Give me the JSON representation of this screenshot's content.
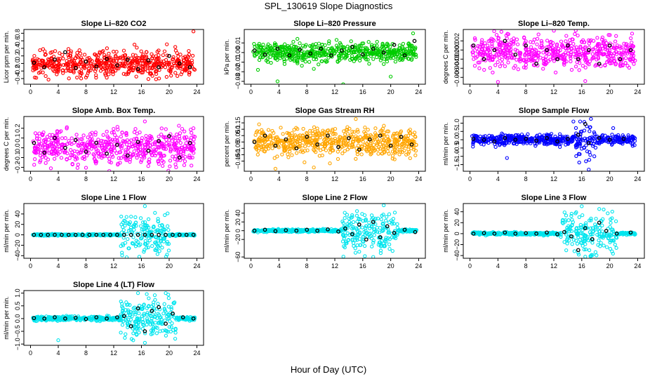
{
  "title": "SPL_130619  Slope Diagnostics",
  "xlabel": "Hour of Day (UTC)",
  "colors": {
    "red": "#ff0000",
    "green": "#00cc00",
    "magenta": "#ff00ff",
    "orange": "#ffa500",
    "blue": "#0000ff",
    "cyan": "#00e5ee",
    "black": "#000000"
  },
  "chart_data": [
    {
      "type": "scatter",
      "title": "Slope Li-820 CO2",
      "ylabel": "Licor ppm per min.",
      "xlim": [
        0,
        24
      ],
      "xticks": [
        0,
        4,
        8,
        12,
        16,
        20,
        24
      ],
      "ylim": [
        -0.55,
        0.9
      ],
      "yticks": [
        -0.4,
        -0.2,
        0.0,
        0.2,
        0.4,
        0.6,
        0.8
      ],
      "ytick_labels": [
        "-0.4",
        "-0.2",
        "0.0",
        "0.2",
        "0.4",
        "0.6",
        "0.8"
      ],
      "color": "red",
      "center": 0.0,
      "noise": 0.17,
      "wide": [],
      "outliers": [
        [
          23.5,
          0.85
        ],
        [
          15,
          0.5
        ],
        [
          3.1,
          0.3
        ]
      ],
      "black": [
        [
          0.5,
          0.02
        ],
        [
          2,
          -0.1
        ],
        [
          3.5,
          0.1
        ],
        [
          5,
          0.3
        ],
        [
          6.5,
          -0.12
        ],
        [
          8,
          0.05
        ],
        [
          9.5,
          -0.08
        ],
        [
          11,
          0.12
        ],
        [
          12.5,
          -0.05
        ],
        [
          14,
          0.1
        ],
        [
          15.5,
          -0.15
        ],
        [
          17,
          0.08
        ],
        [
          18.5,
          -0.1
        ],
        [
          20,
          0.2
        ],
        [
          21.5,
          0.0
        ],
        [
          23,
          -0.1
        ]
      ]
    },
    {
      "type": "scatter",
      "title": "Slope Li-820 Pressure",
      "ylabel": "kPa per min.",
      "xlim": [
        0,
        24
      ],
      "xticks": [
        0,
        4,
        8,
        12,
        16,
        20,
        24
      ],
      "ylim": [
        -0.033,
        0.024
      ],
      "yticks": [
        -0.03,
        -0.02,
        -0.01,
        0.0,
        0.01
      ],
      "ytick_labels": [
        "-0.03",
        "-0.02",
        "-0.01",
        "0.00",
        "0.01"
      ],
      "color": "green",
      "center": 0.0,
      "noise": 0.005,
      "wide": [],
      "outliers": [
        [
          3.8,
          -0.03
        ],
        [
          13.2,
          -0.033
        ],
        [
          20,
          -0.025
        ],
        [
          1,
          -0.018
        ],
        [
          9,
          -0.017
        ],
        [
          23.2,
          0.02
        ],
        [
          19,
          -0.012
        ]
      ],
      "black": [
        [
          0.5,
          0.002
        ],
        [
          2,
          -0.002
        ],
        [
          3.8,
          0.004
        ],
        [
          5.5,
          -0.003
        ],
        [
          7,
          0.003
        ],
        [
          8.5,
          -0.001
        ],
        [
          10,
          0.004
        ],
        [
          11.5,
          -0.003
        ],
        [
          13,
          0.002
        ],
        [
          14.5,
          0.006
        ],
        [
          16,
          -0.002
        ],
        [
          17.5,
          0.004
        ],
        [
          19,
          0.0
        ],
        [
          20.5,
          0.008
        ],
        [
          22,
          -0.003
        ],
        [
          23.4,
          0.012
        ]
      ]
    },
    {
      "type": "scatter",
      "title": "Slope Li-820 Temp.",
      "ylabel": "degrees C per min.",
      "xlim": [
        0,
        24
      ],
      "xticks": [
        0,
        4,
        8,
        12,
        16,
        20,
        24
      ],
      "ylim": [
        -0.0075,
        0.0045
      ],
      "yticks": [
        -0.006,
        -0.004,
        -0.002,
        0.0,
        0.002
      ],
      "ytick_labels": [
        "-0.006",
        "-0.004",
        "-0.002",
        "0.000",
        "0.002"
      ],
      "color": "magenta",
      "center": -0.0005,
      "noise": 0.0017,
      "wide": [],
      "outliers": [
        [
          4,
          -0.007
        ],
        [
          4.5,
          0.004
        ],
        [
          15,
          0.0035
        ],
        [
          23.2,
          0.0036
        ],
        [
          16.5,
          -0.0068
        ]
      ],
      "black": [
        [
          0.5,
          0.001
        ],
        [
          2,
          -0.002
        ],
        [
          3.5,
          0.0
        ],
        [
          5,
          0.002
        ],
        [
          6.5,
          -0.001
        ],
        [
          8,
          0.001
        ],
        [
          9.5,
          -0.003
        ],
        [
          11,
          0.0
        ],
        [
          12.5,
          -0.002
        ],
        [
          14,
          0.001
        ],
        [
          15.5,
          -0.002
        ],
        [
          17,
          0.0
        ],
        [
          18.5,
          -0.003
        ],
        [
          20,
          0.001
        ],
        [
          21.5,
          -0.002
        ],
        [
          23,
          0.0
        ]
      ]
    },
    {
      "type": "scatter",
      "title": "Slope Amb. Box Temp.",
      "ylabel": "degrees C per min.",
      "xlim": [
        0,
        24
      ],
      "xticks": [
        0,
        4,
        8,
        12,
        16,
        20,
        24
      ],
      "ylim": [
        -0.24,
        0.32
      ],
      "yticks": [
        -0.2,
        -0.1,
        0.0,
        0.1,
        0.2
      ],
      "ytick_labels": [
        "-0.2",
        "-0.1",
        "0.0",
        "0.1",
        "0.2"
      ],
      "color": "magenta",
      "center": 0.0,
      "noise": 0.085,
      "wide": [],
      "outliers": [
        [
          16.5,
          0.27
        ],
        [
          23.5,
          0.2
        ],
        [
          21,
          -0.2
        ]
      ],
      "black": [
        [
          0.5,
          0.05
        ],
        [
          2,
          -0.05
        ],
        [
          3.5,
          0.1
        ],
        [
          5,
          0.0
        ],
        [
          6.5,
          0.08
        ],
        [
          8,
          -0.04
        ],
        [
          9.5,
          0.05
        ],
        [
          11,
          -0.06
        ],
        [
          12.5,
          0.03
        ],
        [
          14,
          -0.08
        ],
        [
          15.5,
          0.06
        ],
        [
          17,
          -0.03
        ],
        [
          18.5,
          0.07
        ],
        [
          20,
          0.12
        ],
        [
          21.5,
          -0.1
        ],
        [
          23,
          0.05
        ]
      ]
    },
    {
      "type": "scatter",
      "title": "Slope Gas Stream RH",
      "ylabel": "percent per min.",
      "xlim": [
        0,
        24
      ],
      "xticks": [
        0,
        4,
        8,
        12,
        16,
        20,
        24
      ],
      "ylim": [
        -0.23,
        0.2
      ],
      "yticks": [
        -0.15,
        -0.1,
        -0.05,
        0.0,
        0.05,
        0.1,
        0.15
      ],
      "ytick_labels": [
        "-0.15",
        "-0.1",
        "-0.05",
        "0",
        "0.05",
        "0.1",
        "0.15"
      ],
      "color": "orange",
      "center": 0.0,
      "noise": 0.055,
      "wide": [],
      "outliers": [
        [
          3.5,
          -0.21
        ],
        [
          15,
          0.18
        ],
        [
          9,
          -0.2
        ]
      ],
      "black": [
        [
          0.5,
          0.0
        ],
        [
          2,
          0.05
        ],
        [
          3.5,
          -0.03
        ],
        [
          5,
          0.02
        ],
        [
          6.5,
          -0.05
        ],
        [
          8,
          0.04
        ],
        [
          9.5,
          -0.02
        ],
        [
          11,
          0.05
        ],
        [
          12.5,
          -0.04
        ],
        [
          14,
          0.03
        ],
        [
          15.5,
          -0.06
        ],
        [
          17,
          0.02
        ],
        [
          18.5,
          0.05
        ],
        [
          20,
          -0.03
        ],
        [
          21.5,
          0.04
        ],
        [
          23,
          -0.02
        ]
      ]
    },
    {
      "type": "scatter",
      "title": "Slope Sample Flow",
      "ylabel": "ml/min per min.",
      "xlim": [
        0,
        24
      ],
      "xticks": [
        0,
        4,
        8,
        12,
        16,
        20,
        24
      ],
      "ylim": [
        -1.9,
        1.4
      ],
      "yticks": [
        -1.5,
        -1.0,
        -0.5,
        0.0,
        0.5,
        1.0
      ],
      "ytick_labels": [
        "-1.5",
        "-1.0",
        "-0.5",
        "0.0",
        "0.5",
        "1.0"
      ],
      "color": "blue",
      "center": 0.0,
      "noise": 0.15,
      "wide": [
        [
          15,
          18,
          0.5
        ]
      ],
      "outliers": [
        [
          5.3,
          -1.1
        ],
        [
          17,
          -1.8
        ],
        [
          16.6,
          -1.3
        ],
        [
          14.8,
          1.1
        ],
        [
          17.8,
          -1.0
        ],
        [
          20.5,
          0.7
        ]
      ],
      "black": [
        [
          0.5,
          0.05
        ],
        [
          2,
          0.0
        ],
        [
          3.5,
          -0.1
        ],
        [
          5,
          0.1
        ],
        [
          6.5,
          0.0
        ],
        [
          8,
          0.05
        ],
        [
          9.5,
          -0.05
        ],
        [
          11,
          0.1
        ],
        [
          12.5,
          -0.1
        ],
        [
          14,
          0.05
        ],
        [
          15.5,
          0.3
        ],
        [
          16.5,
          0.95
        ],
        [
          17,
          -0.2
        ],
        [
          18.5,
          0.1
        ],
        [
          20,
          0.0
        ],
        [
          22,
          0.05
        ]
      ]
    },
    {
      "type": "scatter",
      "title": "Slope Line 1 Flow",
      "ylabel": "ml/min per min.",
      "xlim": [
        0,
        24
      ],
      "xticks": [
        0,
        4,
        8,
        12,
        16,
        20,
        24
      ],
      "ylim": [
        -45,
        60
      ],
      "yticks": [
        -40,
        -20,
        0,
        20,
        40
      ],
      "ytick_labels": [
        "-40",
        "-20",
        "0",
        "20",
        "40"
      ],
      "color": "cyan",
      "center": 0,
      "noise": 0.8,
      "wide": [
        [
          13,
          20,
          20
        ]
      ],
      "outliers": [
        [
          16.5,
          55
        ],
        [
          15.7,
          -42
        ],
        [
          19.7,
          -38
        ],
        [
          14.5,
          35
        ]
      ],
      "black": [
        [
          0.5,
          0
        ],
        [
          1.5,
          0
        ],
        [
          2.5,
          0
        ],
        [
          3.5,
          0
        ],
        [
          4.5,
          0
        ],
        [
          5.5,
          0
        ],
        [
          6.5,
          0
        ],
        [
          7.5,
          0
        ],
        [
          8.5,
          0
        ],
        [
          9.5,
          0
        ],
        [
          10.5,
          0
        ],
        [
          11.5,
          0
        ],
        [
          12.5,
          0
        ],
        [
          13.5,
          0
        ],
        [
          14.5,
          0
        ],
        [
          15.5,
          0
        ],
        [
          16.5,
          0
        ],
        [
          17.5,
          0
        ],
        [
          18.5,
          0
        ],
        [
          19.5,
          0
        ],
        [
          20.5,
          0
        ],
        [
          21.5,
          0
        ],
        [
          22.5,
          0
        ],
        [
          23.5,
          0
        ]
      ]
    },
    {
      "type": "scatter",
      "title": "Slope Line 2 Flow",
      "ylabel": "ml/min per min.",
      "xlim": [
        0,
        24
      ],
      "xticks": [
        0,
        4,
        8,
        12,
        16,
        20,
        24
      ],
      "ylim": [
        -63,
        62
      ],
      "yticks": [
        -60,
        -20,
        0,
        20,
        40
      ],
      "ytick_labels": [
        "-60",
        "-20",
        "0",
        "20",
        "40"
      ],
      "color": "cyan",
      "center": 0,
      "noise": 1.5,
      "wide": [
        [
          13,
          21,
          22
        ]
      ],
      "outliers": [
        [
          19,
          58
        ],
        [
          17.5,
          -60
        ],
        [
          16.3,
          -58
        ],
        [
          15.5,
          -48
        ]
      ],
      "black": [
        [
          0.5,
          0
        ],
        [
          2,
          2
        ],
        [
          3.5,
          -1
        ],
        [
          5,
          1
        ],
        [
          6.5,
          0
        ],
        [
          8,
          2
        ],
        [
          9.5,
          0
        ],
        [
          11,
          3
        ],
        [
          12.5,
          -2
        ],
        [
          13.5,
          5
        ],
        [
          14.5,
          -8
        ],
        [
          15.5,
          14
        ],
        [
          16.5,
          -20
        ],
        [
          17.5,
          20
        ],
        [
          18.5,
          -15
        ],
        [
          19.5,
          10
        ],
        [
          20.5,
          -5
        ],
        [
          22,
          2
        ],
        [
          23.5,
          -3
        ]
      ]
    },
    {
      "type": "scatter",
      "title": "Slope Line 3 Flow",
      "ylabel": "ml/min per min.",
      "xlim": [
        0,
        24
      ],
      "xticks": [
        0,
        4,
        8,
        12,
        16,
        20,
        24
      ],
      "ylim": [
        -45,
        55
      ],
      "yticks": [
        -40,
        -20,
        0,
        20,
        40
      ],
      "ytick_labels": [
        "-40",
        "-20",
        "0",
        "20",
        "40"
      ],
      "color": "cyan",
      "center": 0,
      "noise": 1.2,
      "wide": [
        [
          13,
          21,
          18
        ]
      ],
      "outliers": [
        [
          16,
          50
        ],
        [
          16.5,
          -42
        ],
        [
          18.5,
          45
        ],
        [
          15.5,
          -35
        ]
      ],
      "black": [
        [
          0.5,
          0
        ],
        [
          2,
          1
        ],
        [
          3.5,
          0
        ],
        [
          5,
          2
        ],
        [
          6.5,
          0
        ],
        [
          8,
          1
        ],
        [
          9.5,
          0
        ],
        [
          11,
          2
        ],
        [
          12.5,
          -1
        ],
        [
          13.5,
          3
        ],
        [
          14.5,
          -5
        ],
        [
          15.5,
          -30
        ],
        [
          16.5,
          10
        ],
        [
          17.5,
          -10
        ],
        [
          18.5,
          20
        ],
        [
          19.5,
          5
        ],
        [
          21,
          0
        ],
        [
          23,
          2
        ]
      ]
    },
    {
      "type": "scatter",
      "title": "Slope Line 4 (LT) Flow",
      "ylabel": "ml/min per min.",
      "xlim": [
        0,
        24
      ],
      "xticks": [
        0,
        4,
        8,
        12,
        16,
        20,
        24
      ],
      "ylim": [
        -1.05,
        1.1
      ],
      "yticks": [
        -1.0,
        -0.5,
        0.0,
        0.5,
        1.0
      ],
      "ytick_labels": [
        "-1.0",
        "-0.5",
        "0.0",
        "0.5",
        "1.0"
      ],
      "color": "cyan",
      "center": 0.0,
      "noise": 0.04,
      "wide": [
        [
          13,
          21,
          0.4
        ]
      ],
      "outliers": [
        [
          15.5,
          1.0
        ],
        [
          16.5,
          -0.95
        ],
        [
          19.5,
          1.0
        ],
        [
          4,
          -0.85
        ]
      ],
      "black": [
        [
          0.5,
          0.02
        ],
        [
          2,
          0.0
        ],
        [
          3.5,
          0.05
        ],
        [
          5,
          0.0
        ],
        [
          6.5,
          0.03
        ],
        [
          8,
          -0.02
        ],
        [
          9.5,
          0.05
        ],
        [
          11,
          0.0
        ],
        [
          12.5,
          0.05
        ],
        [
          13.5,
          0.1
        ],
        [
          14.5,
          -0.3
        ],
        [
          15.5,
          0.4
        ],
        [
          16.5,
          -0.5
        ],
        [
          17.5,
          0.3
        ],
        [
          18.5,
          0.45
        ],
        [
          19.5,
          -0.2
        ],
        [
          20.5,
          0.2
        ],
        [
          22,
          0.05
        ],
        [
          23.5,
          0.0
        ]
      ]
    }
  ]
}
